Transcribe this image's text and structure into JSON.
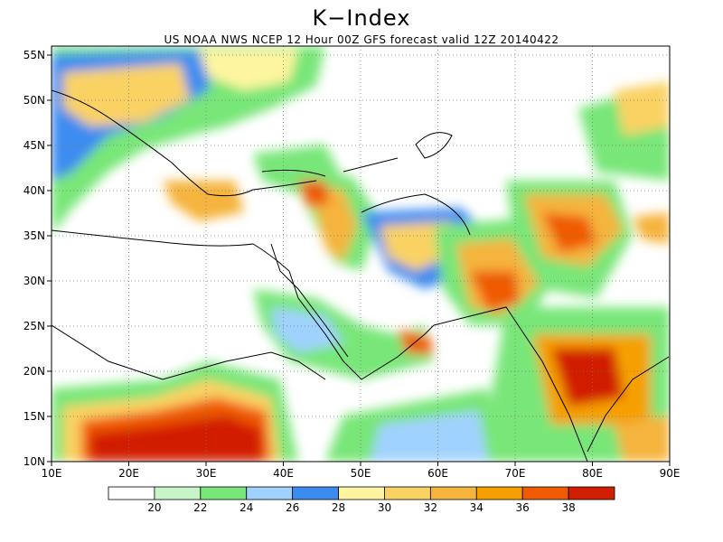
{
  "title": "K−Index",
  "subtitle": "US NOAA NWS NCEP 12 Hour 00Z GFS forecast valid 12Z 20140422",
  "map": {
    "lon_range": [
      10,
      90
    ],
    "lat_range": [
      10,
      56
    ],
    "lon_ticks": [
      "10E",
      "20E",
      "30E",
      "40E",
      "50E",
      "60E",
      "70E",
      "80E",
      "90E"
    ],
    "lat_ticks": [
      "10N",
      "15N",
      "20N",
      "25N",
      "30N",
      "35N",
      "40N",
      "45N",
      "50N",
      "55N"
    ],
    "gridlines": true
  },
  "legend": {
    "colors": [
      "#ffffff",
      "#c8f5c8",
      "#78e678",
      "#a0d2ff",
      "#3c8cf0",
      "#fff5a0",
      "#fad264",
      "#f5b43c",
      "#f5a000",
      "#f05a00",
      "#d21e00"
    ],
    "labels": [
      "20",
      "22",
      "24",
      "26",
      "28",
      "30",
      "32",
      "34",
      "36",
      "38"
    ]
  }
}
